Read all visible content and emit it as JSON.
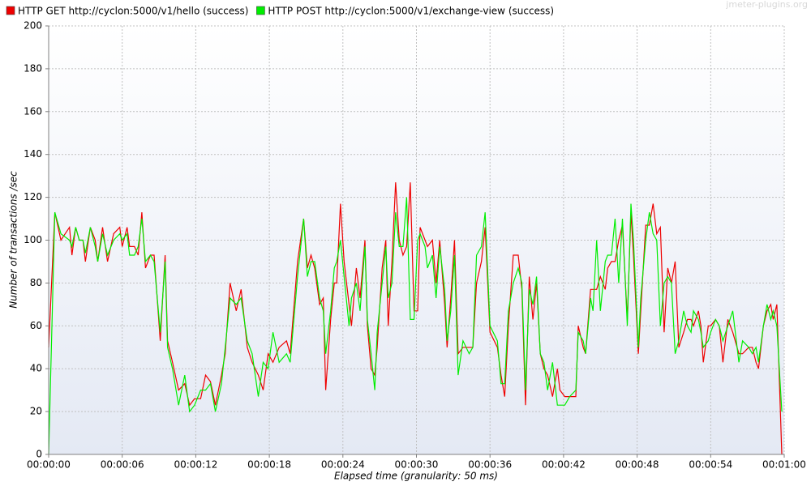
{
  "chart_data": {
    "type": "line",
    "watermark": "jmeter-plugins.org",
    "x_label": "Elapsed time (granularity: 50 ms)",
    "y_label": "Number of transactions /sec",
    "x": [
      0,
      0.5,
      1.0,
      1.7,
      1.9,
      2.2,
      2.5,
      2.8,
      3.0,
      3.4,
      3.8,
      4.0,
      4.4,
      4.8,
      5.3,
      5.8,
      6.0,
      6.4,
      6.6,
      7.0,
      7.3,
      7.6,
      7.9,
      8.3,
      8.6,
      9.1,
      9.5,
      9.7,
      10.1,
      10.6,
      11.1,
      11.5,
      11.9,
      12.4,
      12.8,
      13.2,
      13.6,
      14.1,
      14.4,
      14.8,
      15.3,
      15.7,
      16.2,
      16.6,
      17.1,
      17.5,
      17.9,
      18.3,
      18.8,
      19.4,
      19.7,
      20.3,
      20.8,
      21.1,
      21.4,
      21.7,
      22.1,
      22.4,
      22.6,
      23.0,
      23.3,
      23.5,
      23.8,
      24.1,
      24.5,
      24.7,
      25.1,
      25.4,
      25.8,
      26.0,
      26.3,
      26.6,
      26.8,
      27.2,
      27.5,
      27.7,
      28.0,
      28.3,
      28.6,
      28.9,
      29.2,
      29.5,
      29.8,
      30.1,
      30.3,
      30.7,
      30.9,
      31.3,
      31.6,
      31.9,
      32.3,
      32.5,
      32.8,
      33.1,
      33.4,
      33.8,
      34.3,
      34.6,
      34.9,
      35.3,
      35.6,
      36.0,
      36.6,
      36.9,
      37.2,
      37.5,
      37.9,
      38.3,
      38.6,
      38.9,
      39.2,
      39.5,
      39.8,
      40.1,
      40.4,
      40.7,
      41.1,
      41.5,
      41.7,
      42.1,
      42.5,
      43.0,
      43.2,
      43.6,
      43.8,
      44.2,
      44.4,
      44.7,
      45.0,
      45.4,
      45.6,
      45.9,
      46.2,
      46.5,
      46.8,
      47.2,
      47.5,
      47.7,
      48.1,
      48.3,
      48.7,
      49.0,
      49.3,
      49.6,
      49.9,
      50.2,
      50.5,
      50.8,
      51.1,
      51.4,
      51.8,
      52.1,
      52.4,
      52.6,
      53.0,
      53.2,
      53.4,
      53.8,
      54.0,
      54.4,
      54.7,
      55.0,
      55.4,
      55.8,
      56.3,
      56.6,
      57.1,
      57.4,
      57.7,
      57.9,
      58.3,
      58.6,
      58.9,
      59.1,
      59.4,
      59.8
    ],
    "series": [
      {
        "name": "HTTP GET http://cyclon:5000/v1/hello (success)",
        "color": "#ee0000",
        "values": [
          50,
          113,
          100,
          106,
          93,
          106,
          100,
          100,
          90,
          106,
          100,
          90,
          106,
          90,
          103,
          106,
          97,
          106,
          97,
          97,
          93,
          113,
          87,
          93,
          93,
          53,
          93,
          53,
          43,
          30,
          33,
          23,
          26,
          26,
          37,
          34,
          23,
          37,
          47,
          80,
          67,
          77,
          50,
          43,
          37,
          30,
          47,
          43,
          50,
          53,
          47,
          90,
          110,
          87,
          93,
          87,
          70,
          73,
          30,
          63,
          80,
          80,
          117,
          90,
          70,
          60,
          87,
          73,
          100,
          60,
          40,
          37,
          50,
          87,
          100,
          60,
          90,
          127,
          100,
          93,
          97,
          127,
          67,
          67,
          106,
          100,
          97,
          100,
          80,
          100,
          70,
          50,
          73,
          100,
          47,
          50,
          50,
          50,
          80,
          90,
          106,
          57,
          50,
          37,
          27,
          60,
          93,
          93,
          77,
          23,
          83,
          63,
          80,
          47,
          40,
          37,
          27,
          40,
          30,
          27,
          27,
          27,
          60,
          50,
          47,
          77,
          77,
          77,
          83,
          77,
          87,
          90,
          90,
          100,
          107,
          63,
          113,
          93,
          47,
          67,
          107,
          107,
          117,
          103,
          106,
          57,
          87,
          80,
          90,
          50,
          57,
          63,
          63,
          60,
          67,
          60,
          43,
          60,
          60,
          63,
          60,
          43,
          63,
          57,
          47,
          47,
          50,
          50,
          43,
          40,
          60,
          67,
          70,
          63,
          70,
          0
        ]
      },
      {
        "name": "HTTP POST http://cyclon:5000/v1/exchange-view (success)",
        "color": "#00ee00",
        "values": [
          0,
          113,
          103,
          100,
          97,
          106,
          100,
          100,
          94,
          106,
          97,
          90,
          103,
          93,
          100,
          103,
          100,
          103,
          93,
          93,
          97,
          110,
          90,
          93,
          90,
          57,
          90,
          50,
          40,
          23,
          37,
          20,
          23,
          30,
          30,
          33,
          20,
          33,
          50,
          73,
          70,
          73,
          53,
          47,
          27,
          43,
          40,
          57,
          43,
          47,
          43,
          83,
          110,
          83,
          90,
          90,
          73,
          67,
          47,
          67,
          87,
          90,
          100,
          83,
          60,
          73,
          80,
          67,
          97,
          63,
          47,
          30,
          57,
          80,
          97,
          73,
          80,
          113,
          97,
          97,
          120,
          63,
          63,
          100,
          103,
          97,
          87,
          93,
          73,
          97,
          77,
          53,
          67,
          93,
          37,
          53,
          47,
          50,
          93,
          97,
          113,
          60,
          53,
          33,
          33,
          67,
          80,
          87,
          80,
          30,
          77,
          70,
          83,
          47,
          43,
          30,
          43,
          23,
          23,
          23,
          27,
          30,
          57,
          53,
          47,
          73,
          67,
          100,
          67,
          90,
          93,
          93,
          110,
          80,
          110,
          60,
          117,
          100,
          50,
          73,
          100,
          113,
          103,
          100,
          60,
          80,
          83,
          80,
          47,
          53,
          67,
          60,
          57,
          67,
          63,
          57,
          50,
          53,
          57,
          63,
          60,
          53,
          60,
          67,
          43,
          53,
          50,
          47,
          50,
          43,
          60,
          70,
          63,
          67,
          60,
          20
        ]
      }
    ],
    "xlim": [
      0,
      60
    ],
    "xticks": [
      {
        "value": 0,
        "label": "00:00:00"
      },
      {
        "value": 6,
        "label": "00:00:06"
      },
      {
        "value": 12,
        "label": "00:00:12"
      },
      {
        "value": 18,
        "label": "00:00:18"
      },
      {
        "value": 24,
        "label": "00:00:24"
      },
      {
        "value": 30,
        "label": "00:00:30"
      },
      {
        "value": 36,
        "label": "00:00:36"
      },
      {
        "value": 42,
        "label": "00:00:42"
      },
      {
        "value": 48,
        "label": "00:00:48"
      },
      {
        "value": 54,
        "label": "00:00:54"
      },
      {
        "value": 60,
        "label": "00:01:00"
      }
    ],
    "ylim": [
      0,
      200
    ],
    "yticks": [
      0,
      20,
      40,
      60,
      80,
      100,
      120,
      140,
      160,
      180,
      200
    ],
    "grid": true,
    "legend": "top"
  }
}
